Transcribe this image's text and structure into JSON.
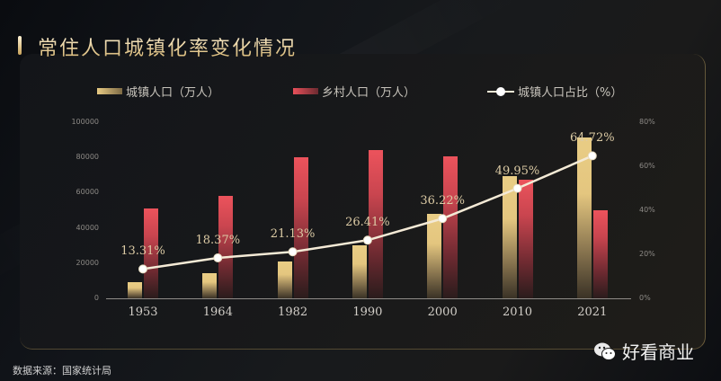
{
  "title": "常住人口城镇化率变化情况",
  "legend": {
    "urban": "城镇人口（万人）",
    "rural": "乡村人口（万人）",
    "ratio": "城镇人口占比（%）"
  },
  "source": "数据来源：国家统计局",
  "brand": "好看商业",
  "colors": {
    "urban": "#e8cb84",
    "rural": "#ec535c",
    "line": "#f4ead6",
    "background": "#0b0d11"
  },
  "left_axis_ticks": [
    "100000",
    "80000",
    "60000",
    "40000",
    "20000",
    "0"
  ],
  "right_axis_ticks": [
    "80%",
    "60%",
    "40%",
    "20%",
    "0%"
  ],
  "chart_data": {
    "type": "bar",
    "title": "常住人口城镇化率变化情况",
    "categories": [
      "1953",
      "1964",
      "1982",
      "1990",
      "2000",
      "2010",
      "2021"
    ],
    "series": [
      {
        "name": "城镇人口（万人）",
        "type": "bar",
        "axis": "left",
        "values": [
          9200,
          14300,
          21000,
          30200,
          48000,
          69400,
          91400
        ]
      },
      {
        "name": "乡村人口（万人）",
        "type": "bar",
        "axis": "left",
        "values": [
          51000,
          58100,
          80100,
          84100,
          80800,
          67100,
          49800
        ]
      },
      {
        "name": "城镇人口占比（%）",
        "type": "line",
        "axis": "right",
        "values": [
          13.31,
          18.37,
          21.13,
          26.41,
          36.22,
          49.95,
          64.72
        ]
      }
    ],
    "point_labels": [
      "13.31%",
      "18.37%",
      "21.13%",
      "26.41%",
      "36.22%",
      "49.95%",
      "64.72%"
    ],
    "xlabel": "",
    "ylabel_left": "",
    "ylabel_right": "",
    "ylim_left": [
      0,
      100000
    ],
    "ylim_right": [
      0,
      80
    ],
    "grid": false,
    "legend_position": "top"
  }
}
